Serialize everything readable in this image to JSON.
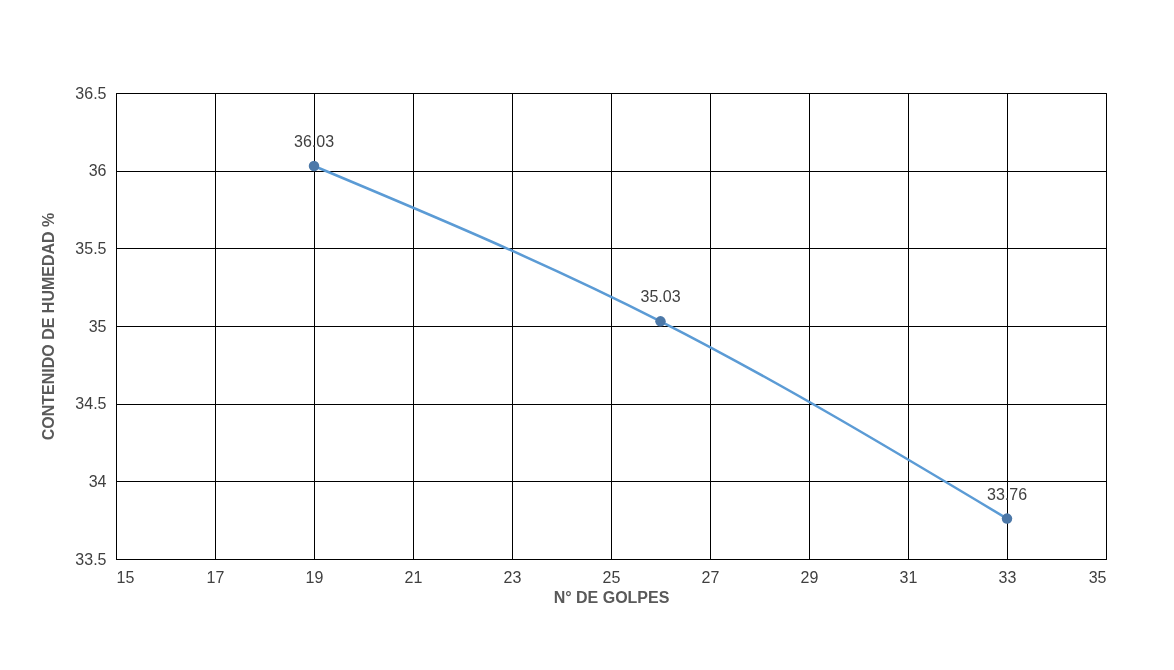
{
  "chart_data": {
    "type": "line",
    "xlabel": "N° DE GOLPES",
    "ylabel": "CONTENIDO DE HUMEDAD %",
    "x": [
      19,
      26,
      33
    ],
    "series": [
      {
        "color": "#5b9bd5",
        "values": [
          36.03,
          35.03,
          33.76
        ]
      }
    ],
    "xlim": [
      15,
      35
    ],
    "xticks": [
      15,
      17,
      19,
      21,
      23,
      25,
      27,
      29,
      31,
      33,
      35
    ],
    "ylim": [
      33.5,
      36.5
    ],
    "yticks": [
      33.5,
      34,
      34.5,
      35,
      35.5,
      36,
      36.5
    ],
    "grid": true,
    "marker": "circle",
    "line_style": "solid",
    "data_labels": true
  }
}
